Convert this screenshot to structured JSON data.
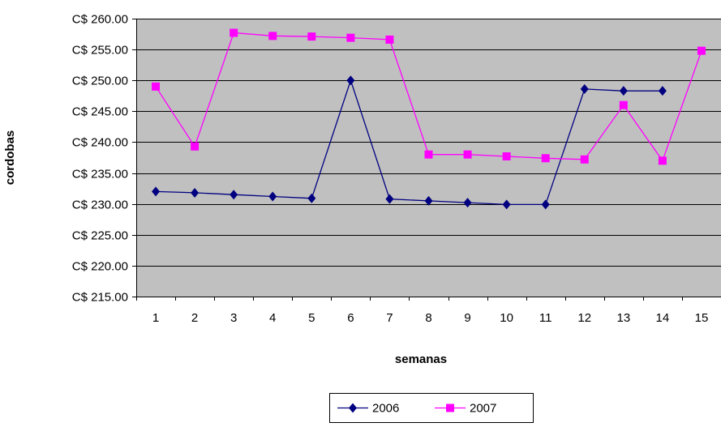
{
  "chart_data": {
    "type": "line",
    "xlabel": "semanas",
    "ylabel": "cordobas",
    "categories": [
      "1",
      "2",
      "3",
      "4",
      "5",
      "6",
      "7",
      "8",
      "9",
      "10",
      "11",
      "12",
      "13",
      "14",
      "15"
    ],
    "ylim": [
      215,
      260
    ],
    "ytick_step": 5,
    "ytick_prefix": "C$ ",
    "grid": "horizontal",
    "plot_background": "#c0c0c0",
    "legend_position": "bottom-center",
    "series": [
      {
        "name": "2006",
        "color": "#000080",
        "marker": "diamond",
        "values": [
          232.0,
          231.8,
          231.5,
          231.2,
          230.9,
          250.0,
          230.8,
          230.5,
          230.2,
          229.9,
          229.9,
          248.6,
          248.3,
          248.3,
          null
        ]
      },
      {
        "name": "2007",
        "color": "#ff00ff",
        "marker": "square",
        "values": [
          249.0,
          239.3,
          257.7,
          257.2,
          257.1,
          256.9,
          256.6,
          238.0,
          238.0,
          237.7,
          237.4,
          237.2,
          246.0,
          237.0,
          254.8
        ]
      }
    ]
  }
}
